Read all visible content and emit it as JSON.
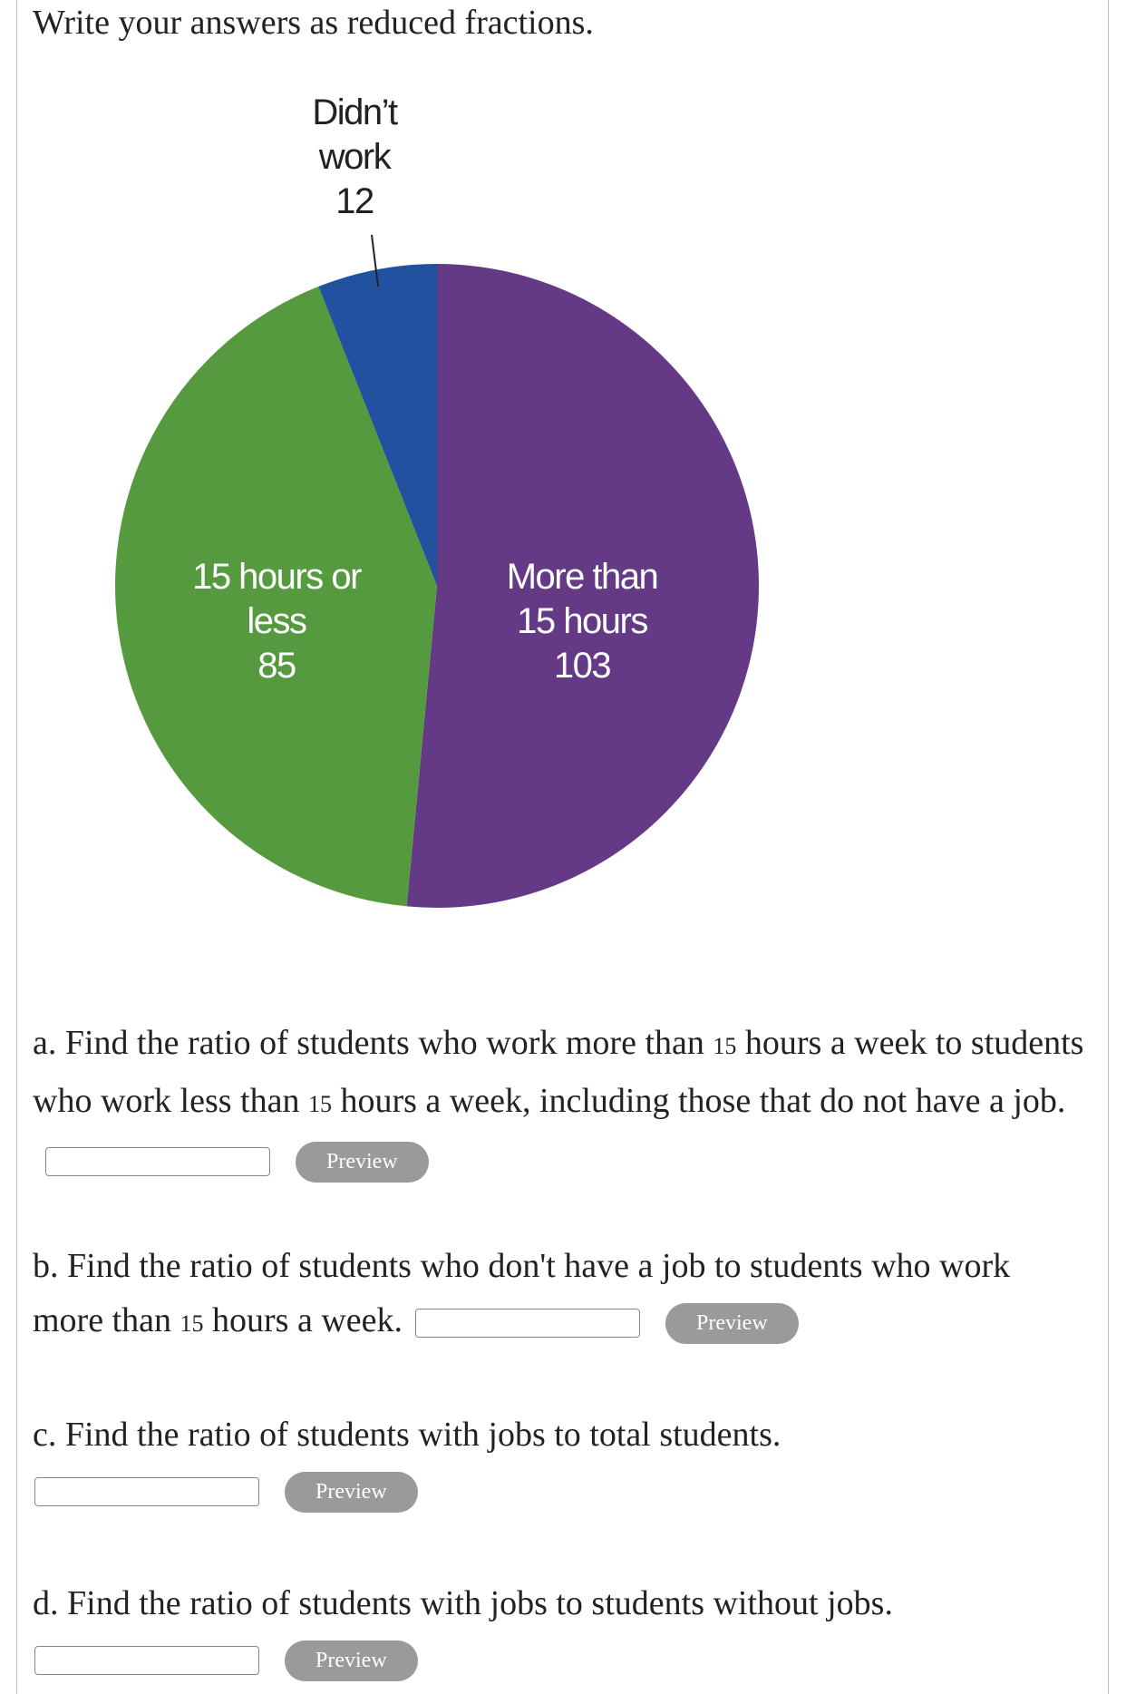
{
  "instruction": "Write your answers as reduced fractions.",
  "chart_data": {
    "type": "pie",
    "categories": [
      "More than 15 hours",
      "15 hours or less",
      "Didn’t work"
    ],
    "values": [
      103,
      85,
      12
    ],
    "colors": [
      "#643a86",
      "#569a3f",
      "#22529f"
    ]
  },
  "questions": [
    {
      "text": [
        "a. Find the ratio of students who work more than ",
        "15",
        " hours a week to students who work less than ",
        "15",
        " hours a week, including those that do not have a job."
      ],
      "button": "Preview"
    },
    {
      "text": [
        "b. Find the ratio of students who don't have a job to students who work more than ",
        "15",
        " hours a week."
      ],
      "button": "Preview"
    },
    {
      "text": [
        "c. Find the ratio of students with jobs to total students."
      ],
      "button": "Preview"
    },
    {
      "text": [
        "d. Find the ratio of students with jobs to students without jobs."
      ],
      "button": "Preview"
    }
  ]
}
